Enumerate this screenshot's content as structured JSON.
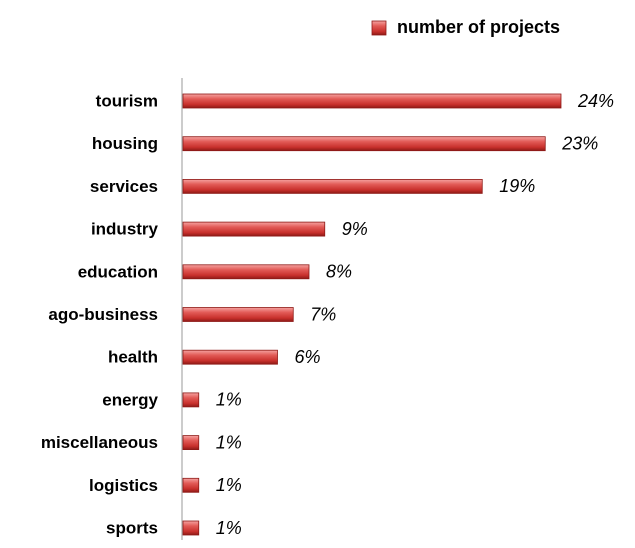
{
  "chart_data": {
    "type": "bar",
    "orientation": "horizontal",
    "categories": [
      "tourism",
      "housing",
      "services",
      "industry",
      "education",
      "ago-business",
      "health",
      "energy",
      "miscellaneous",
      "logistics",
      "sports"
    ],
    "series": [
      {
        "name": "number of projects",
        "color": "#d9534f",
        "values": [
          24,
          23,
          19,
          9,
          8,
          7,
          6,
          1,
          1,
          1,
          1
        ],
        "value_labels": [
          "24%",
          "23%",
          "19%",
          "9%",
          "8%",
          "7%",
          "6%",
          "1%",
          "1%",
          "1%",
          "1%"
        ]
      }
    ],
    "legend": "top-right"
  }
}
